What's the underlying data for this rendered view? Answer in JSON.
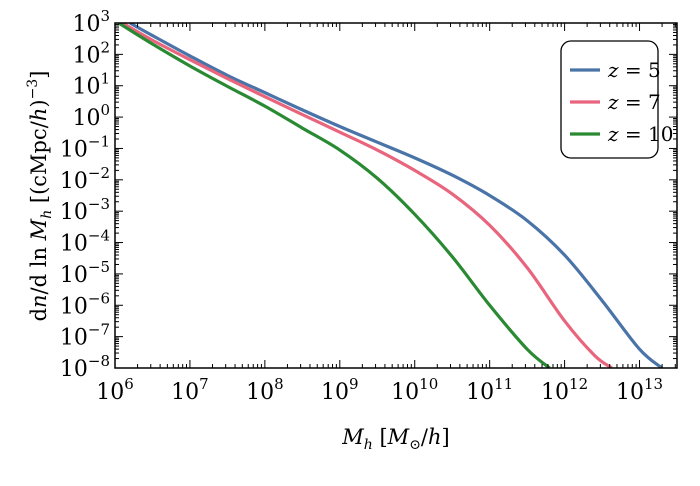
{
  "chart_data": {
    "type": "line",
    "title": "",
    "xlabel": "M_h [M_⊙/h]",
    "ylabel": "dn/d ln M_h [(cMpc/h)^-3]",
    "x_scale": "log",
    "y_scale": "log",
    "xlim_log10": [
      6,
      13.5
    ],
    "ylim_log10": [
      -8,
      3
    ],
    "x_ticks": [
      {
        "base": "10",
        "exp": "6"
      },
      {
        "base": "10",
        "exp": "7"
      },
      {
        "base": "10",
        "exp": "8"
      },
      {
        "base": "10",
        "exp": "9"
      },
      {
        "base": "10",
        "exp": "10"
      },
      {
        "base": "10",
        "exp": "11"
      },
      {
        "base": "10",
        "exp": "12"
      },
      {
        "base": "10",
        "exp": "13"
      }
    ],
    "y_ticks": [
      {
        "base": "10",
        "exp": "3"
      },
      {
        "base": "10",
        "exp": "2"
      },
      {
        "base": "10",
        "exp": "1"
      },
      {
        "base": "10",
        "exp": "0"
      },
      {
        "base": "10",
        "exp": "−1"
      },
      {
        "base": "10",
        "exp": "−2"
      },
      {
        "base": "10",
        "exp": "−3"
      },
      {
        "base": "10",
        "exp": "−4"
      },
      {
        "base": "10",
        "exp": "−5"
      },
      {
        "base": "10",
        "exp": "−6"
      },
      {
        "base": "10",
        "exp": "−7"
      },
      {
        "base": "10",
        "exp": "−8"
      }
    ],
    "legend_position": "top-right",
    "series": [
      {
        "name": "z = 5",
        "color": "#4a74a8",
        "log10_x": [
          6.2,
          6.5,
          7,
          7.5,
          8,
          8.5,
          9,
          9.5,
          10,
          10.5,
          11,
          11.5,
          12,
          12.5,
          13,
          13.3
        ],
        "log10_y": [
          3.0,
          2.6,
          1.95,
          1.33,
          0.78,
          0.23,
          -0.3,
          -0.8,
          -1.3,
          -1.85,
          -2.5,
          -3.3,
          -4.4,
          -5.85,
          -7.4,
          -8.0
        ]
      },
      {
        "name": "z = 7",
        "color": "#e8657d",
        "log10_x": [
          6.1,
          6.5,
          7,
          7.5,
          8,
          8.5,
          9,
          9.5,
          10,
          10.5,
          11,
          11.5,
          12,
          12.4,
          12.63
        ],
        "log10_y": [
          3.0,
          2.45,
          1.83,
          1.23,
          0.65,
          0.08,
          -0.48,
          -1.05,
          -1.7,
          -2.45,
          -3.45,
          -4.8,
          -6.5,
          -7.6,
          -8.0
        ]
      },
      {
        "name": "z = 10",
        "color": "#2a8a33",
        "log10_x": [
          6.05,
          6.5,
          7,
          7.5,
          8,
          8.5,
          9,
          9.5,
          10,
          10.5,
          11,
          11.5,
          11.8
        ],
        "log10_y": [
          3.0,
          2.33,
          1.63,
          0.98,
          0.35,
          -0.35,
          -1.05,
          -1.95,
          -3.1,
          -4.45,
          -6.0,
          -7.4,
          -8.0
        ]
      }
    ],
    "legend": [
      {
        "label_var": "z",
        "label_eq": " = 5",
        "color": "#4a74a8"
      },
      {
        "label_var": "z",
        "label_eq": " = 7",
        "color": "#e8657d"
      },
      {
        "label_var": "z",
        "label_eq": " = 10",
        "color": "#2a8a33"
      }
    ]
  }
}
